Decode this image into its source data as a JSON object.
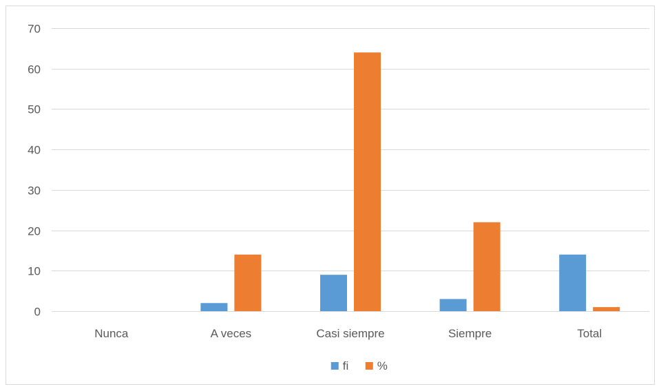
{
  "chart_data": {
    "type": "bar",
    "categories": [
      "Nunca",
      "A veces",
      "Casi siempre",
      "Siempre",
      "Total"
    ],
    "series": [
      {
        "name": "fi",
        "values": [
          0,
          2,
          9,
          3,
          14
        ],
        "color": "#5b9bd5"
      },
      {
        "name": "%",
        "values": [
          0,
          14,
          64,
          22,
          1
        ],
        "color": "#ed7d31"
      }
    ],
    "title": "",
    "xlabel": "",
    "ylabel": "",
    "ylim": [
      0,
      70
    ],
    "yticks": [
      0,
      10,
      20,
      30,
      40,
      50,
      60,
      70
    ],
    "grid": true,
    "legend_position": "bottom",
    "gridline_color": "#d9d9d9"
  }
}
